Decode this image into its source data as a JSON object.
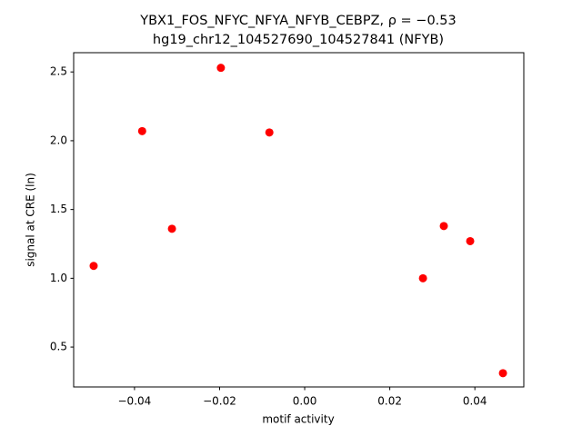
{
  "chart_data": {
    "type": "scatter",
    "title": "YBX1_FOS_NFYC_NFYA_NFYB_CEBPZ, ρ = −0.53",
    "subtitle": "hg19_chr12_104527690_104527841 (NFYB)",
    "x_label": "motif activity",
    "y_label": "signal at CRE (ln)",
    "color": "#ff0000",
    "x": [
      -0.0496,
      -0.0382,
      -0.0312,
      -0.0197,
      -0.0083,
      0.0278,
      0.0327,
      0.0389,
      0.0466
    ],
    "values": [
      1.09,
      2.07,
      1.36,
      2.53,
      2.06,
      1.0,
      1.38,
      1.27,
      0.31
    ],
    "xlim": [
      -0.0543,
      0.0515
    ],
    "ylim": [
      0.21,
      2.64
    ],
    "xticks": [
      {
        "value": -0.04,
        "label": "−0.04"
      },
      {
        "value": -0.02,
        "label": "−0.02"
      },
      {
        "value": 0,
        "label": "0.00"
      },
      0.02,
      0.04
    ],
    "yticks": [
      0.5,
      {
        "value": 1,
        "label": "1.0"
      },
      1.5,
      {
        "value": 2,
        "label": "2.0"
      },
      2.5
    ],
    "grid": false
  }
}
